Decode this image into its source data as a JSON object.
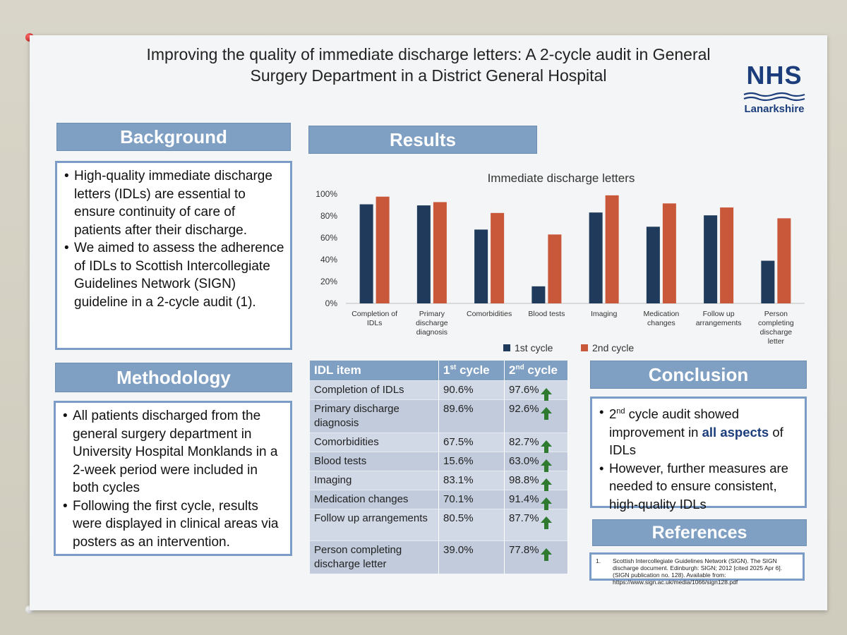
{
  "title": "Improving the quality of immediate discharge letters: A 2-cycle audit in General Surgery Department in a District General Hospital",
  "logo": {
    "name": "NHS",
    "region": "Lanarkshire"
  },
  "background": {
    "heading": "Background",
    "bullets": [
      "High-quality immediate discharge letters (IDLs) are essential to ensure continuity of care of patients after their discharge.",
      "We aimed to assess the adherence of IDLs to Scottish Intercollegiate Guidelines Network (SIGN) guideline in a 2-cycle audit (1)."
    ]
  },
  "methodology": {
    "heading": "Methodology",
    "bullets": [
      "All patients discharged from the general surgery department in University Hospital Monklands in a 2-week period were included in both cycles",
      "Following the first cycle, results were displayed in clinical areas via posters as an intervention."
    ]
  },
  "results": {
    "heading": "Results"
  },
  "conclusion": {
    "heading": "Conclusion",
    "b1_sup": "nd",
    "b1_pre": "2",
    "b1_a": " cycle audit showed improvement in ",
    "b1_strong": "all aspects",
    "b1_b": " of IDLs",
    "b2": "However, further measures are needed to ensure consistent, high-quality IDLs"
  },
  "references": {
    "heading": "References",
    "num": "1.",
    "text": "Scottish Intercollegiate Guidelines Network (SIGN). The SIGN discharge document. Edinburgh: SIGN; 2012 [cited 2025 Apr 6]. (SIGN publication no. 128). Available from: https://www.sign.ac.uk/media/1066/sign128.pdf"
  },
  "table": {
    "headers": [
      "IDL item",
      "1",
      "st",
      " cycle",
      "2",
      "nd",
      " cycle"
    ],
    "rows": [
      [
        "Completion of IDLs",
        "90.6%",
        "97.6%"
      ],
      [
        "Primary discharge diagnosis",
        "89.6%",
        "92.6%"
      ],
      [
        "Comorbidities",
        "67.5%",
        "82.7%"
      ],
      [
        "Blood tests",
        "15.6%",
        "63.0%"
      ],
      [
        "Imaging",
        "83.1%",
        "98.8%"
      ],
      [
        "Medication changes",
        "70.1%",
        "91.4%"
      ],
      [
        "Follow up arrangements",
        "80.5%",
        "87.7%"
      ],
      [
        "Person completing discharge letter",
        "39.0%",
        "77.8%"
      ]
    ]
  },
  "colors": {
    "series1": "#1f3a5a",
    "series2": "#c9573a",
    "header": "#7f9fc3"
  },
  "chart_data": {
    "type": "bar",
    "title": "Immediate discharge letters",
    "categories": [
      "Completion of IDLs",
      "Primary discharge diagnosis",
      "Comorbidities",
      "Blood tests",
      "Imaging",
      "Medication changes",
      "Follow up arrangements",
      "Person completing discharge letter"
    ],
    "series": [
      {
        "name": "1st cycle",
        "values": [
          90.6,
          89.6,
          67.5,
          15.6,
          83.1,
          70.1,
          80.5,
          39.0
        ]
      },
      {
        "name": "2nd cycle",
        "values": [
          97.6,
          92.6,
          82.7,
          63.0,
          98.8,
          91.4,
          87.7,
          77.8
        ]
      }
    ],
    "yticks": [
      "0%",
      "20%",
      "40%",
      "60%",
      "80%",
      "100%"
    ],
    "ylim": [
      0,
      100
    ],
    "legend": "bottom",
    "grid": false
  }
}
